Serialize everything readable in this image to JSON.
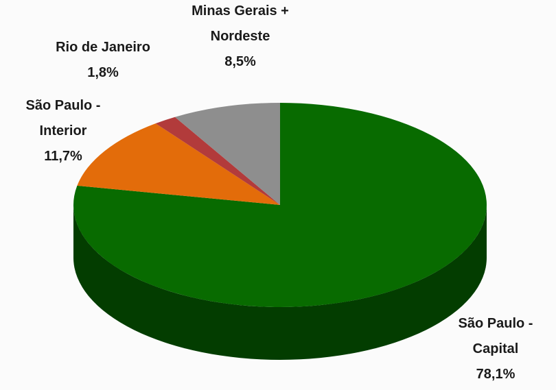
{
  "chart_data": {
    "type": "pie",
    "categories": [
      "São Paulo - Capital",
      "São Paulo - Interior",
      "Rio de Janeiro",
      "Minas Gerais + Nordeste"
    ],
    "values": [
      78.1,
      11.7,
      1.8,
      8.5
    ],
    "value_labels": [
      "78,1%",
      "11,7%",
      "1,8%",
      "8,5%"
    ],
    "colors": [
      "#086b00",
      "#e36c0a",
      "#b23b3b",
      "#8e8e8e"
    ],
    "side_colors": [
      "#033d00",
      "#8a4006",
      "#6b2323",
      "#555555"
    ]
  }
}
